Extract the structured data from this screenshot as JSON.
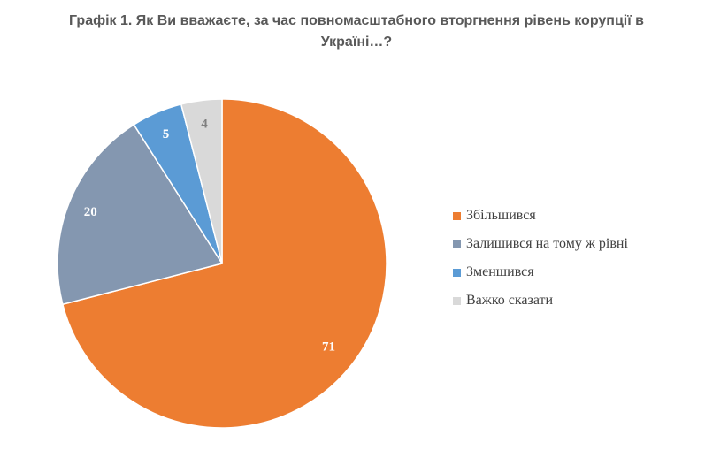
{
  "chart_data": {
    "type": "pie",
    "title": "Графік 1. Як Ви вважаєте, за час повномасштабного вторгнення рівень корупції в Україні…?",
    "categories": [
      "Збільшився",
      "Залишився на тому ж рівні",
      "Зменшився",
      "Важко сказати"
    ],
    "values": [
      71,
      20,
      5,
      4
    ],
    "data_labels": [
      "71",
      "20",
      "5",
      "4"
    ],
    "colors": [
      "#ED7D31",
      "#8497B0",
      "#5B9BD5",
      "#D9D9D9"
    ],
    "label_colors": [
      "#ffffff",
      "#ffffff",
      "#ffffff",
      "#7F7F7F"
    ],
    "start": "top",
    "direction": "clockwise",
    "legend_position": "right"
  }
}
